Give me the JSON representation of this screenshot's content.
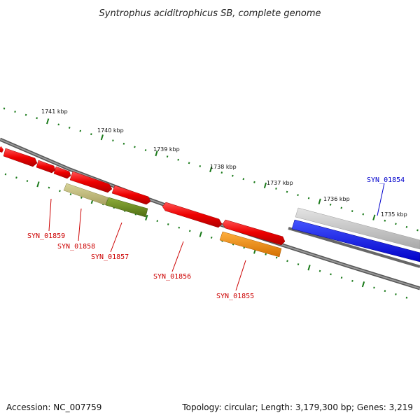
{
  "title": "Syntrophus aciditrophicus SB, complete genome",
  "footer": {
    "accession": "Accession: NC_007759",
    "summary": "Topology: circular; Length: 3,179,300 bp; Genes: 3,219"
  },
  "colors": {
    "backbone": "#808080",
    "tick": "#1a7a1a",
    "cds_red": "#ee1111",
    "label_red": "#cc0000",
    "label_blue": "#0000cc"
  },
  "kbp_labels": [
    "1741 kbp",
    "1740 kbp",
    "1739 kbp",
    "1738 kbp",
    "1737 kbp",
    "1736 kbp",
    "1735 kbp"
  ],
  "genes": [
    {
      "name": "SYN_01859",
      "color": "red"
    },
    {
      "name": "SYN_01858",
      "color": "red"
    },
    {
      "name": "SYN_01857",
      "color": "red"
    },
    {
      "name": "SYN_01856",
      "color": "red"
    },
    {
      "name": "SYN_01855",
      "color": "red"
    },
    {
      "name": "SYN_01854",
      "color": "blue"
    }
  ]
}
